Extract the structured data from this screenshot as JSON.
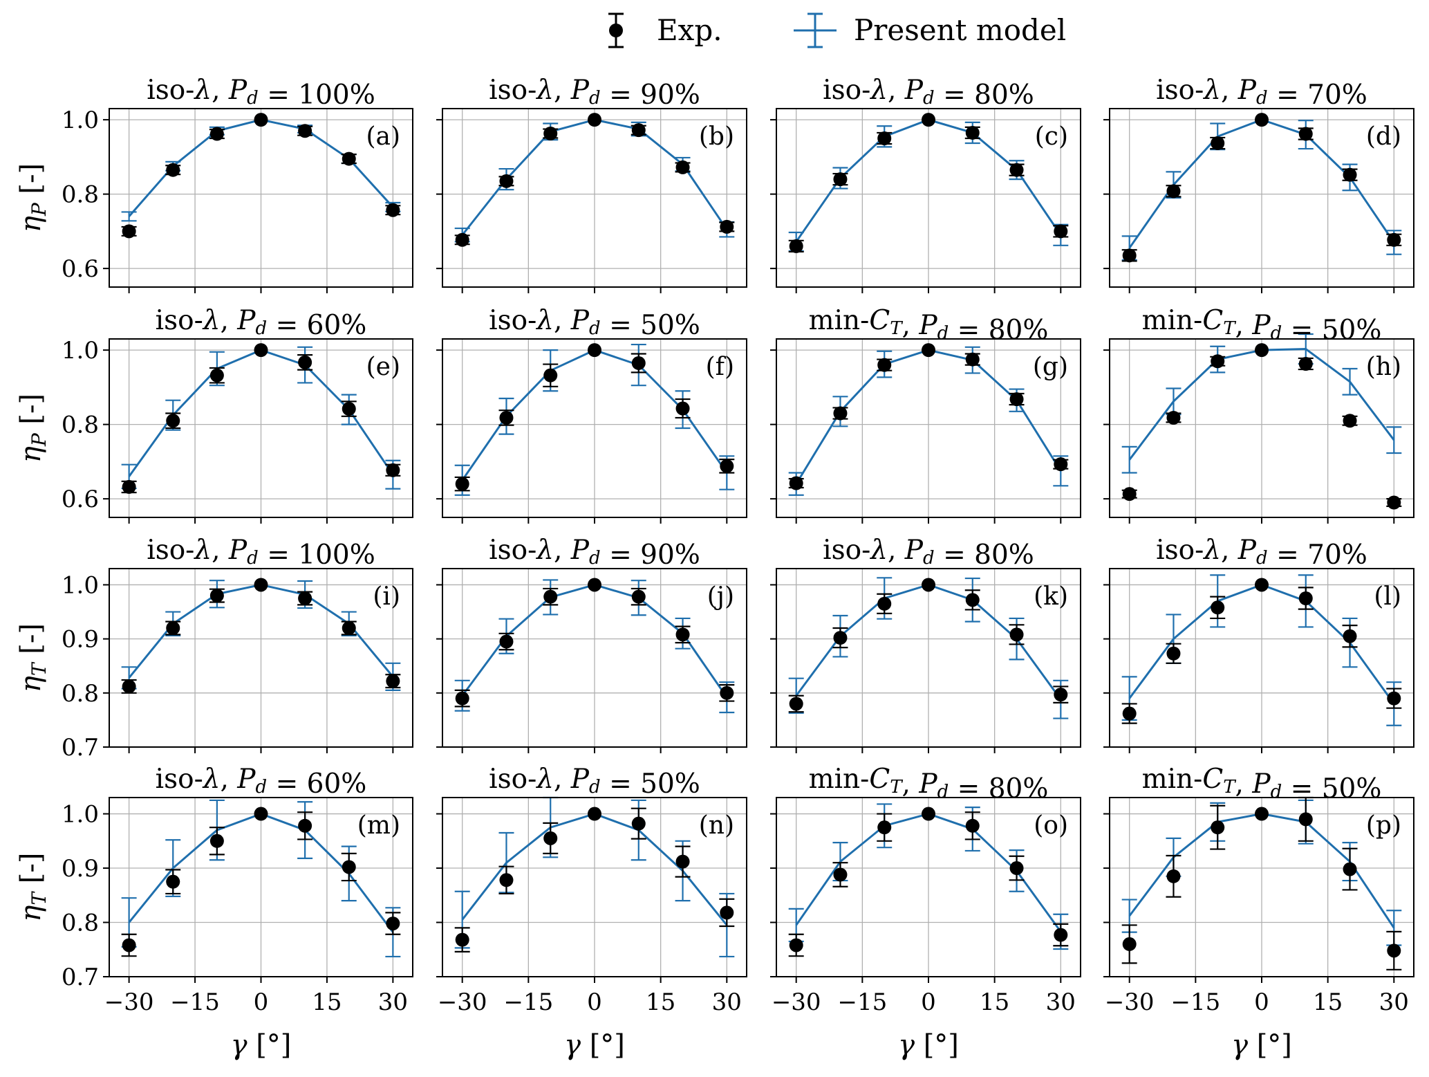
{
  "legend": {
    "exp_label": "Exp.",
    "model_label": "Present model"
  },
  "colors": {
    "exp": "#000000",
    "model": "#1f6fad",
    "grid": "#b0b0b0"
  },
  "axes": {
    "xlabel": "γ [°]",
    "ylabel_P": "ηP [-]",
    "ylabel_T": "ηT [-]",
    "xticks": [
      "−30",
      "−15",
      "0",
      "15",
      "30"
    ],
    "yticks_P": [
      "0.6",
      "0.8",
      "1.0"
    ],
    "yticks_T": [
      "0.7",
      "0.8",
      "0.9",
      "1.0"
    ]
  },
  "chart_data": [
    {
      "panel": "(a)",
      "title": "iso-λ, Pd = 100%",
      "type": "line",
      "metric": "ηP [-]",
      "x": [
        -30,
        -20,
        -10,
        0,
        10,
        20,
        30
      ],
      "ylim": [
        0.55,
        1.03
      ],
      "exp": {
        "y": [
          0.7,
          0.865,
          0.962,
          1.0,
          0.97,
          0.895,
          0.757
        ],
        "err": [
          0.012,
          0.012,
          0.012,
          0,
          0.012,
          0.012,
          0.012
        ]
      },
      "model": {
        "y": [
          0.74,
          0.875,
          0.97,
          1.0,
          0.975,
          0.895,
          0.765
        ],
        "err": [
          0.012,
          0.012,
          0.01,
          0,
          0.01,
          0.012,
          0.012
        ]
      }
    },
    {
      "panel": "(b)",
      "title": "iso-λ, Pd = 90%",
      "type": "line",
      "metric": "ηP [-]",
      "x": [
        -30,
        -20,
        -10,
        0,
        10,
        20,
        30
      ],
      "ylim": [
        0.55,
        1.03
      ],
      "exp": {
        "y": [
          0.677,
          0.835,
          0.963,
          1.0,
          0.972,
          0.872,
          0.712
        ],
        "err": [
          0.012,
          0.012,
          0.012,
          0,
          0.012,
          0.012,
          0.012
        ]
      },
      "model": {
        "y": [
          0.69,
          0.84,
          0.968,
          1.0,
          0.975,
          0.88,
          0.705
        ],
        "err": [
          0.018,
          0.028,
          0.022,
          0,
          0.018,
          0.018,
          0.02
        ]
      }
    },
    {
      "panel": "(c)",
      "title": "iso-λ, Pd = 80%",
      "type": "line",
      "metric": "ηP [-]",
      "x": [
        -30,
        -20,
        -10,
        0,
        10,
        20,
        30
      ],
      "ylim": [
        0.55,
        1.03
      ],
      "exp": {
        "y": [
          0.66,
          0.84,
          0.95,
          1.0,
          0.965,
          0.865,
          0.7
        ],
        "err": [
          0.015,
          0.015,
          0.015,
          0,
          0.015,
          0.015,
          0.015
        ]
      },
      "model": {
        "y": [
          0.672,
          0.843,
          0.955,
          1.0,
          0.965,
          0.865,
          0.69
        ],
        "err": [
          0.025,
          0.028,
          0.028,
          0,
          0.028,
          0.025,
          0.028
        ]
      }
    },
    {
      "panel": "(d)",
      "title": "iso-λ, Pd = 70%",
      "type": "line",
      "metric": "ηP [-]",
      "x": [
        -30,
        -20,
        -10,
        0,
        10,
        20,
        30
      ],
      "ylim": [
        0.55,
        1.03
      ],
      "exp": {
        "y": [
          0.635,
          0.808,
          0.937,
          1.0,
          0.962,
          0.852,
          0.677
        ],
        "err": [
          0.015,
          0.015,
          0.015,
          0,
          0.015,
          0.015,
          0.015
        ]
      },
      "model": {
        "y": [
          0.655,
          0.825,
          0.955,
          1.0,
          0.96,
          0.845,
          0.67
        ],
        "err": [
          0.032,
          0.035,
          0.035,
          0,
          0.038,
          0.035,
          0.032
        ]
      }
    },
    {
      "panel": "(e)",
      "title": "iso-λ, Pd = 60%",
      "type": "line",
      "metric": "ηP [-]",
      "x": [
        -30,
        -20,
        -10,
        0,
        10,
        20,
        30
      ],
      "ylim": [
        0.55,
        1.03
      ],
      "exp": {
        "y": [
          0.632,
          0.81,
          0.932,
          1.0,
          0.967,
          0.842,
          0.677
        ],
        "err": [
          0.015,
          0.02,
          0.02,
          0,
          0.02,
          0.02,
          0.015
        ]
      },
      "model": {
        "y": [
          0.66,
          0.825,
          0.95,
          1.0,
          0.96,
          0.84,
          0.665
        ],
        "err": [
          0.032,
          0.04,
          0.045,
          0,
          0.048,
          0.04,
          0.038
        ]
      }
    },
    {
      "panel": "(f)",
      "title": "iso-λ, Pd = 50%",
      "type": "line",
      "metric": "ηP [-]",
      "x": [
        -30,
        -20,
        -10,
        0,
        10,
        20,
        30
      ],
      "ylim": [
        0.55,
        1.03
      ],
      "exp": {
        "y": [
          0.64,
          0.818,
          0.932,
          1.0,
          0.965,
          0.843,
          0.688
        ],
        "err": [
          0.018,
          0.02,
          0.03,
          0,
          0.025,
          0.025,
          0.018
        ]
      },
      "model": {
        "y": [
          0.65,
          0.822,
          0.945,
          1.0,
          0.96,
          0.84,
          0.67
        ],
        "err": [
          0.04,
          0.048,
          0.055,
          0,
          0.055,
          0.05,
          0.045
        ]
      }
    },
    {
      "panel": "(g)",
      "title": "min-CT, Pd = 80%",
      "type": "line",
      "metric": "ηP [-]",
      "x": [
        -30,
        -20,
        -10,
        0,
        10,
        20,
        30
      ],
      "ylim": [
        0.55,
        1.03
      ],
      "exp": {
        "y": [
          0.642,
          0.83,
          0.96,
          1.0,
          0.975,
          0.868,
          0.693
        ],
        "err": [
          0.012,
          0.015,
          0.015,
          0,
          0.015,
          0.015,
          0.012
        ]
      },
      "model": {
        "y": [
          0.64,
          0.835,
          0.962,
          1.0,
          0.973,
          0.865,
          0.675
        ],
        "err": [
          0.03,
          0.04,
          0.035,
          0,
          0.035,
          0.03,
          0.04
        ]
      }
    },
    {
      "panel": "(h)",
      "title": "min-CT, Pd = 50%",
      "type": "line",
      "metric": "ηP [-]",
      "x": [
        -30,
        -20,
        -10,
        0,
        10,
        20,
        30
      ],
      "ylim": [
        0.55,
        1.03
      ],
      "exp": {
        "y": [
          0.613,
          0.818,
          0.97,
          1.0,
          0.963,
          0.81,
          0.59
        ],
        "err": [
          0.01,
          0.012,
          0.012,
          0,
          0.015,
          0.012,
          0.01
        ]
      },
      "model": {
        "y": [
          0.705,
          0.862,
          0.975,
          1.0,
          1.003,
          0.915,
          0.758
        ],
        "err": [
          0.035,
          0.035,
          0.035,
          0,
          0.04,
          0.035,
          0.035
        ]
      }
    },
    {
      "panel": "(i)",
      "title": "iso-λ, Pd = 100%",
      "type": "line",
      "metric": "ηT [-]",
      "x": [
        -30,
        -20,
        -10,
        0,
        10,
        20,
        30
      ],
      "ylim": [
        0.7,
        1.03
      ],
      "exp": {
        "y": [
          0.812,
          0.92,
          0.98,
          1.0,
          0.975,
          0.92,
          0.822
        ],
        "err": [
          0.012,
          0.012,
          0.012,
          0,
          0.012,
          0.012,
          0.012
        ]
      },
      "model": {
        "y": [
          0.828,
          0.928,
          0.983,
          1.0,
          0.982,
          0.928,
          0.83
        ],
        "err": [
          0.02,
          0.022,
          0.025,
          0,
          0.025,
          0.022,
          0.025
        ]
      }
    },
    {
      "panel": "(j)",
      "title": "iso-λ, Pd = 90%",
      "type": "line",
      "metric": "ηT [-]",
      "x": [
        -30,
        -20,
        -10,
        0,
        10,
        20,
        30
      ],
      "ylim": [
        0.7,
        1.03
      ],
      "exp": {
        "y": [
          0.79,
          0.895,
          0.978,
          1.0,
          0.978,
          0.908,
          0.8
        ],
        "err": [
          0.015,
          0.015,
          0.015,
          0,
          0.015,
          0.015,
          0.015
        ]
      },
      "model": {
        "y": [
          0.795,
          0.905,
          0.977,
          1.0,
          0.976,
          0.91,
          0.792
        ],
        "err": [
          0.028,
          0.032,
          0.032,
          0,
          0.032,
          0.028,
          0.028
        ]
      }
    },
    {
      "panel": "(k)",
      "title": "iso-λ, Pd = 80%",
      "type": "line",
      "metric": "ηT [-]",
      "x": [
        -30,
        -20,
        -10,
        0,
        10,
        20,
        30
      ],
      "ylim": [
        0.7,
        1.03
      ],
      "exp": {
        "y": [
          0.78,
          0.902,
          0.965,
          1.0,
          0.972,
          0.908,
          0.797
        ],
        "err": [
          0.015,
          0.018,
          0.018,
          0,
          0.018,
          0.018,
          0.015
        ]
      },
      "model": {
        "y": [
          0.795,
          0.905,
          0.975,
          1.0,
          0.972,
          0.9,
          0.788
        ],
        "err": [
          0.032,
          0.038,
          0.038,
          0,
          0.04,
          0.038,
          0.035
        ]
      }
    },
    {
      "panel": "(l)",
      "title": "iso-λ, Pd = 70%",
      "type": "line",
      "metric": "ηT [-]",
      "x": [
        -30,
        -20,
        -10,
        0,
        10,
        20,
        30
      ],
      "ylim": [
        0.7,
        1.03
      ],
      "exp": {
        "y": [
          0.762,
          0.873,
          0.958,
          1.0,
          0.975,
          0.905,
          0.79
        ],
        "err": [
          0.018,
          0.018,
          0.02,
          0,
          0.02,
          0.02,
          0.018
        ]
      },
      "model": {
        "y": [
          0.79,
          0.9,
          0.97,
          1.0,
          0.97,
          0.893,
          0.78
        ],
        "err": [
          0.04,
          0.045,
          0.048,
          0,
          0.048,
          0.045,
          0.04
        ]
      }
    },
    {
      "panel": "(m)",
      "title": "iso-λ, Pd = 60%",
      "type": "line",
      "metric": "ηT [-]",
      "x": [
        -30,
        -20,
        -10,
        0,
        10,
        20,
        30
      ],
      "ylim": [
        0.7,
        1.03
      ],
      "exp": {
        "y": [
          0.758,
          0.875,
          0.95,
          1.0,
          0.978,
          0.902,
          0.798
        ],
        "err": [
          0.02,
          0.022,
          0.025,
          0,
          0.025,
          0.025,
          0.02
        ]
      },
      "model": {
        "y": [
          0.8,
          0.9,
          0.97,
          1.0,
          0.97,
          0.89,
          0.782
        ],
        "err": [
          0.045,
          0.052,
          0.055,
          0,
          0.052,
          0.05,
          0.045
        ]
      }
    },
    {
      "panel": "(n)",
      "title": "iso-λ, Pd = 50%",
      "type": "line",
      "metric": "ηT [-]",
      "x": [
        -30,
        -20,
        -10,
        0,
        10,
        20,
        30
      ],
      "ylim": [
        0.7,
        1.03
      ],
      "exp": {
        "y": [
          0.768,
          0.878,
          0.955,
          1.0,
          0.982,
          0.912,
          0.818
        ],
        "err": [
          0.022,
          0.025,
          0.028,
          0,
          0.028,
          0.028,
          0.025
        ]
      },
      "model": {
        "y": [
          0.805,
          0.91,
          0.975,
          1.0,
          0.97,
          0.895,
          0.795
        ],
        "err": [
          0.052,
          0.055,
          0.055,
          0,
          0.055,
          0.055,
          0.058
        ]
      }
    },
    {
      "panel": "(o)",
      "title": "min-CT, Pd = 80%",
      "type": "line",
      "metric": "ηT [-]",
      "x": [
        -30,
        -20,
        -10,
        0,
        10,
        20,
        30
      ],
      "ylim": [
        0.7,
        1.03
      ],
      "exp": {
        "y": [
          0.758,
          0.888,
          0.975,
          1.0,
          0.978,
          0.9,
          0.777
        ],
        "err": [
          0.02,
          0.022,
          0.025,
          0,
          0.025,
          0.022,
          0.02
        ]
      },
      "model": {
        "y": [
          0.795,
          0.912,
          0.978,
          1.0,
          0.972,
          0.895,
          0.783
        ],
        "err": [
          0.03,
          0.035,
          0.04,
          0,
          0.04,
          0.038,
          0.032
        ]
      }
    },
    {
      "panel": "(p)",
      "title": "min-CT, Pd = 50%",
      "type": "line",
      "metric": "ηT [-]",
      "x": [
        -30,
        -20,
        -10,
        0,
        10,
        20,
        30
      ],
      "ylim": [
        0.7,
        1.03
      ],
      "exp": {
        "y": [
          0.76,
          0.885,
          0.975,
          1.0,
          0.99,
          0.898,
          0.748
        ],
        "err": [
          0.035,
          0.038,
          0.04,
          0,
          0.04,
          0.038,
          0.035
        ]
      },
      "model": {
        "y": [
          0.812,
          0.92,
          0.985,
          1.0,
          0.985,
          0.912,
          0.79
        ],
        "err": [
          0.03,
          0.035,
          0.035,
          0,
          0.04,
          0.035,
          0.032
        ]
      }
    }
  ]
}
